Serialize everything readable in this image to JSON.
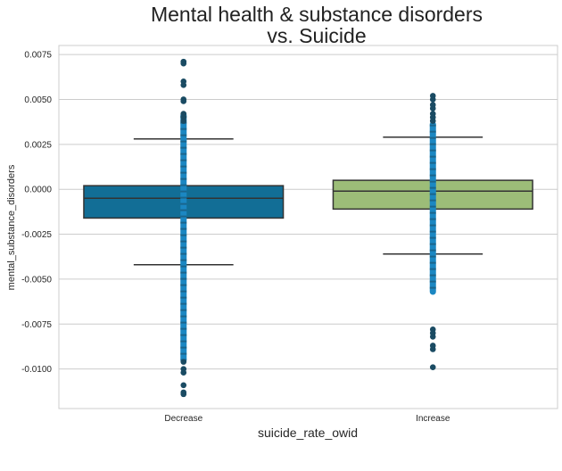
{
  "chart_data": {
    "type": "box",
    "title_lines": [
      "Mental health & substance disorders",
      "vs. Suicide"
    ],
    "xlabel": "suicide_rate_owid",
    "ylabel": "mental_substance_disorders",
    "categories": [
      "Decrease",
      "Increase"
    ],
    "ylim": [
      -0.0122,
      0.008
    ],
    "yticks": [
      -0.01,
      -0.0075,
      -0.005,
      -0.0025,
      0.0,
      0.0025,
      0.005,
      0.0075
    ],
    "ytick_labels": [
      "-0.0100",
      "-0.0075",
      "-0.0050",
      "-0.0025",
      "0.0000",
      "0.0025",
      "0.0050",
      "0.0075"
    ],
    "grid": "horizontal",
    "boxes": [
      {
        "category": "Decrease",
        "color": "#126e96",
        "q1": -0.0016,
        "median": -0.0005,
        "q3": 0.0002,
        "whisker_low": -0.0042,
        "whisker_high": 0.0028,
        "strip_low": -0.0095,
        "strip_high": 0.0041,
        "outliers": [
          0.0071,
          0.007,
          0.006,
          0.0058,
          0.005,
          0.0049,
          0.0042,
          0.004,
          0.0038,
          -0.0096,
          -0.01,
          -0.0102,
          -0.0109,
          -0.0114,
          -0.0113
        ]
      },
      {
        "category": "Increase",
        "color": "#9cbd78",
        "q1": -0.0011,
        "median": -0.0001,
        "q3": 0.0005,
        "whisker_low": -0.0036,
        "whisker_high": 0.0029,
        "strip_low": -0.0057,
        "strip_high": 0.0036,
        "outliers": [
          0.0052,
          0.005,
          0.0047,
          0.0045,
          0.0042,
          0.004,
          0.0038,
          -0.0078,
          -0.008,
          -0.0082,
          -0.0087,
          -0.0089,
          -0.0099
        ]
      }
    ],
    "point_color": "#1a4b63",
    "point_highlight": "#1b87c2"
  }
}
